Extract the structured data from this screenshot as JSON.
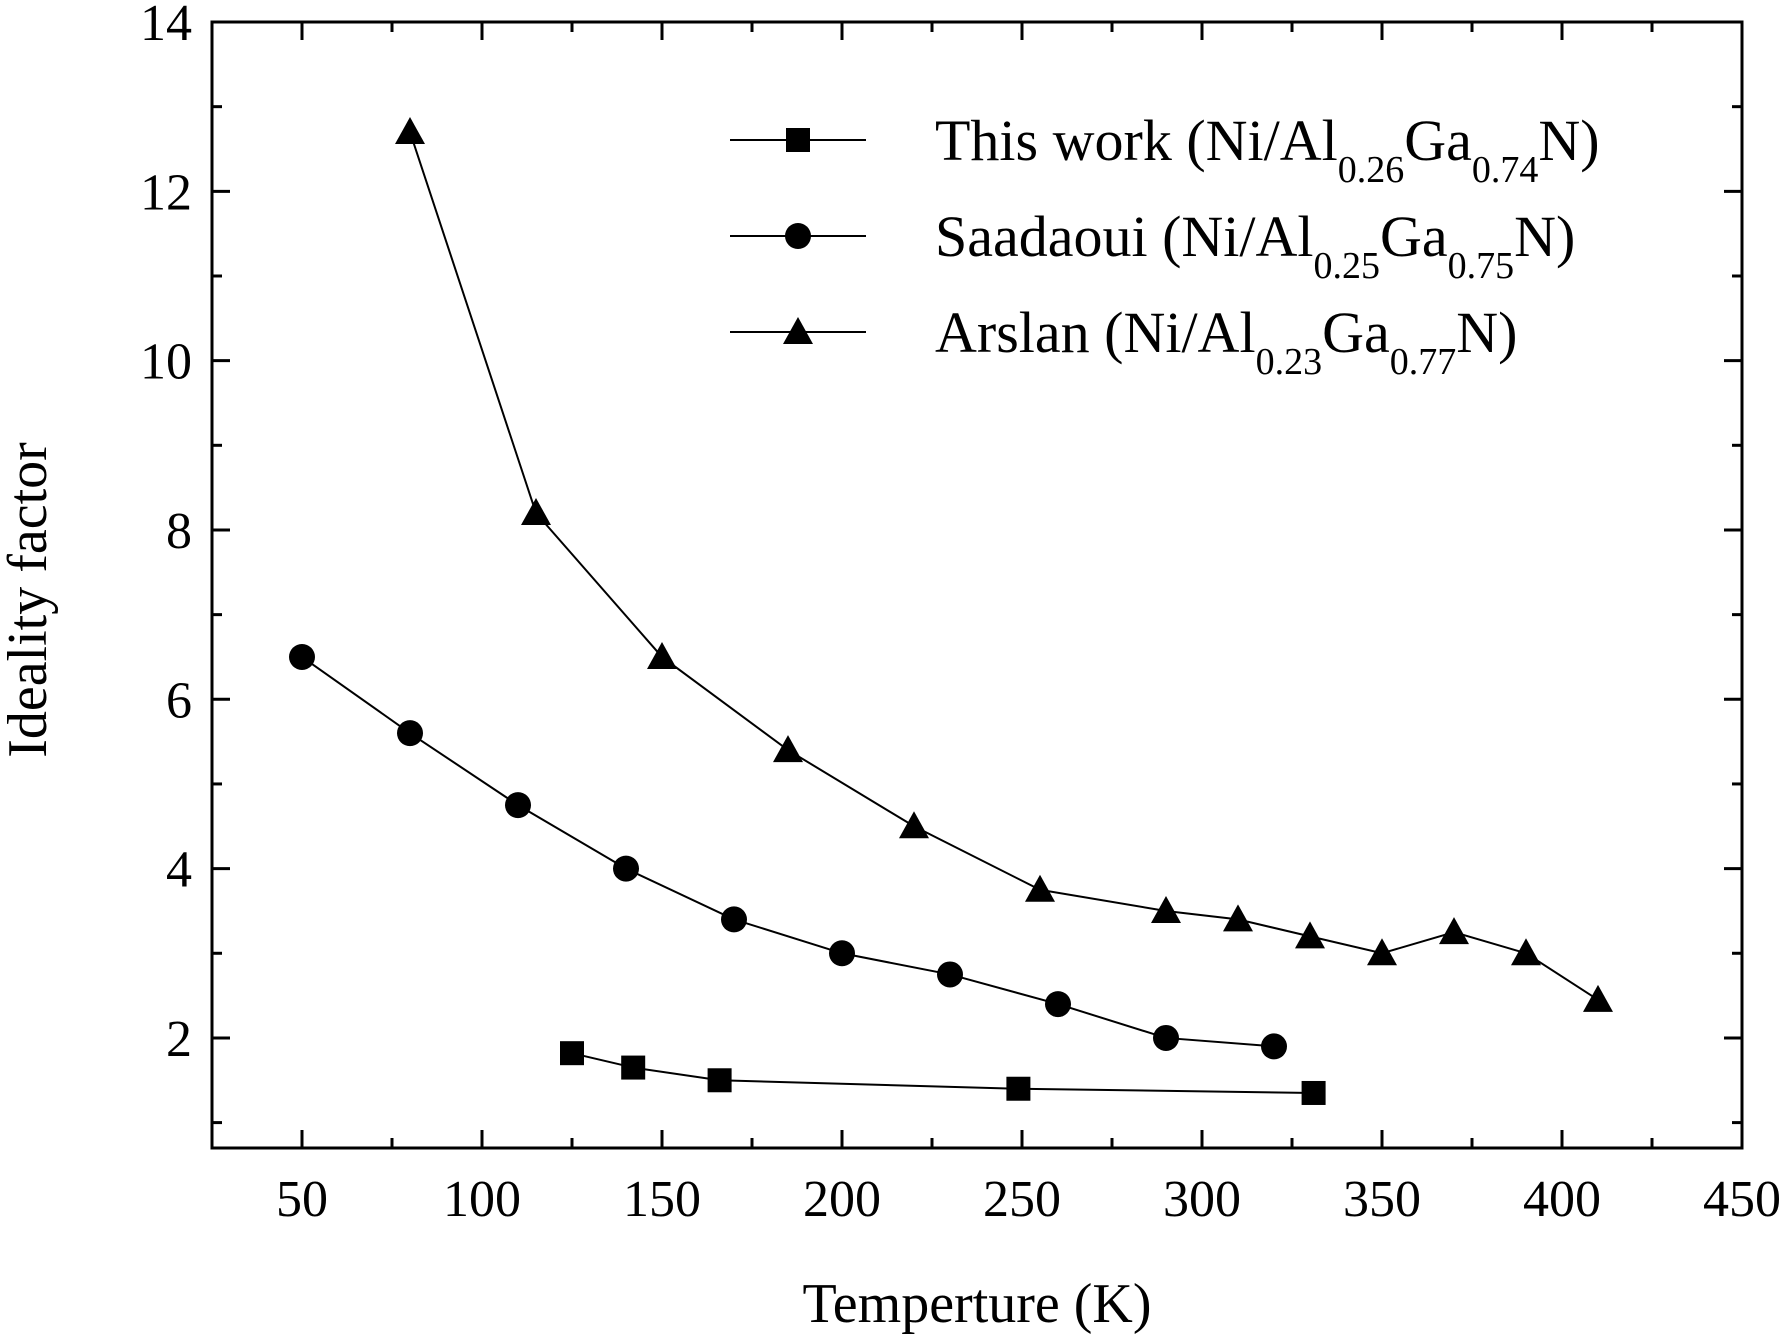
{
  "chart_data": {
    "type": "line",
    "xlabel": "Temperture (K)",
    "ylabel": "Ideality factor",
    "xlim": [
      25,
      450
    ],
    "ylim": [
      0.7,
      14
    ],
    "xticks": [
      50,
      100,
      150,
      200,
      250,
      300,
      350,
      400,
      450
    ],
    "yticks": [
      2,
      4,
      6,
      8,
      10,
      12,
      14
    ],
    "xtick_labels": [
      "50",
      "100",
      "150",
      "200",
      "250",
      "300",
      "350",
      "400",
      "450"
    ],
    "ytick_labels": [
      "2",
      "4",
      "6",
      "8",
      "10",
      "12",
      "14"
    ],
    "legend_position": "top-right",
    "series": [
      {
        "name": "This work (Ni/Al0.26Ga0.74N)",
        "marker": "square",
        "legend": {
          "prefix": "This work (Ni/Al",
          "sub1": "0.26",
          "mid": "Ga",
          "sub2": "0.74",
          "suffix": "N)"
        },
        "x": [
          125,
          142,
          166,
          249,
          331
        ],
        "y": [
          1.82,
          1.65,
          1.5,
          1.4,
          1.35
        ]
      },
      {
        "name": "Saadaoui (Ni/Al0.25Ga0.75N)",
        "marker": "circle",
        "legend": {
          "prefix": "Saadaoui (Ni/Al",
          "sub1": "0.25",
          "mid": "Ga",
          "sub2": "0.75",
          "suffix": "N)"
        },
        "x": [
          50,
          80,
          110,
          140,
          170,
          200,
          230,
          260,
          290,
          320
        ],
        "y": [
          6.5,
          5.6,
          4.75,
          4.0,
          3.4,
          3.0,
          2.75,
          2.4,
          2.0,
          1.9
        ]
      },
      {
        "name": "Arslan (Ni/Al0.23Ga0.77N)",
        "marker": "triangle",
        "legend": {
          "prefix": "Arslan (Ni/Al",
          "sub1": "0.23",
          "mid": "Ga",
          "sub2": "0.77",
          "suffix": "N)"
        },
        "x": [
          80,
          115,
          150,
          185,
          220,
          255,
          290,
          310,
          330,
          350,
          370,
          390,
          410
        ],
        "y": [
          12.7,
          8.2,
          6.5,
          5.4,
          4.5,
          3.75,
          3.5,
          3.4,
          3.2,
          3.0,
          3.25,
          3.0,
          2.45
        ]
      }
    ]
  }
}
